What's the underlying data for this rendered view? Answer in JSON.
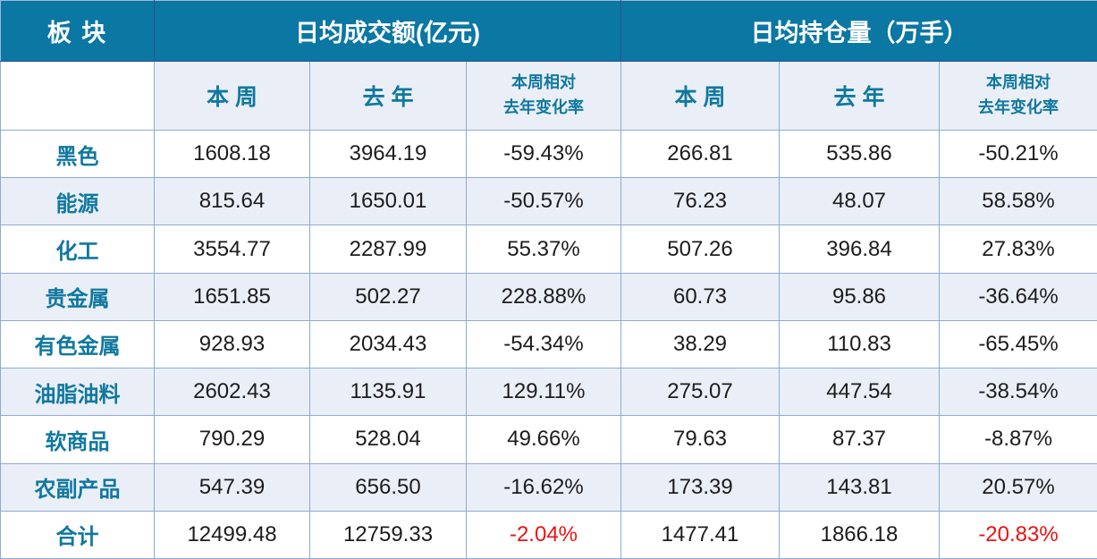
{
  "colors": {
    "header_bg": "#0b77a3",
    "header_text": "#ffffff",
    "header_divider": "#2e4e95",
    "grid_border": "#8fa9d8",
    "accent_text": "#10789f",
    "light_row_bg": "#eaeff7",
    "number_text": "#1c1c1c",
    "negative_total_text": "#ee1111"
  },
  "header": {
    "corner": "板 块",
    "group1_title": "日均成交额(亿元)",
    "group2_title": "日均持仓量（万手）",
    "sub": {
      "this_week": "本 周",
      "last_year": "去 年",
      "change_line1": "本周相对",
      "change_line2": "去年变化率"
    }
  },
  "chart_data": {
    "type": "table",
    "corner_header": "板 块",
    "column_groups": [
      {
        "title": "日均成交额(亿元)",
        "columns": [
          "本 周",
          "去 年",
          "本周相对去年变化率"
        ]
      },
      {
        "title": "日均持仓量（万手）",
        "columns": [
          "本 周",
          "去 年",
          "本周相对去年变化率"
        ]
      }
    ],
    "rows": [
      {
        "sector": "黑色",
        "values": [
          "1608.18",
          "3964.19",
          "-59.43%",
          "266.81",
          "535.86",
          "-50.21%"
        ],
        "red": []
      },
      {
        "sector": "能源",
        "values": [
          "815.64",
          "1650.01",
          "-50.57%",
          "76.23",
          "48.07",
          "58.58%"
        ],
        "red": []
      },
      {
        "sector": "化工",
        "values": [
          "3554.77",
          "2287.99",
          "55.37%",
          "507.26",
          "396.84",
          "27.83%"
        ],
        "red": []
      },
      {
        "sector": "贵金属",
        "values": [
          "1651.85",
          "502.27",
          "228.88%",
          "60.73",
          "95.86",
          "-36.64%"
        ],
        "red": []
      },
      {
        "sector": "有色金属",
        "values": [
          "928.93",
          "2034.43",
          "-54.34%",
          "38.29",
          "110.83",
          "-65.45%"
        ],
        "red": []
      },
      {
        "sector": "油脂油料",
        "values": [
          "2602.43",
          "1135.91",
          "129.11%",
          "275.07",
          "447.54",
          "-38.54%"
        ],
        "red": []
      },
      {
        "sector": "软商品",
        "values": [
          "790.29",
          "528.04",
          "49.66%",
          "79.63",
          "87.37",
          "-8.87%"
        ],
        "red": []
      },
      {
        "sector": "农副产品",
        "values": [
          "547.39",
          "656.50",
          "-16.62%",
          "173.39",
          "143.81",
          "20.57%"
        ],
        "red": []
      },
      {
        "sector": "合计",
        "values": [
          "12499.48",
          "12759.33",
          "-2.04%",
          "1477.41",
          "1866.18",
          "-20.83%"
        ],
        "red": [
          2,
          5
        ]
      }
    ]
  }
}
